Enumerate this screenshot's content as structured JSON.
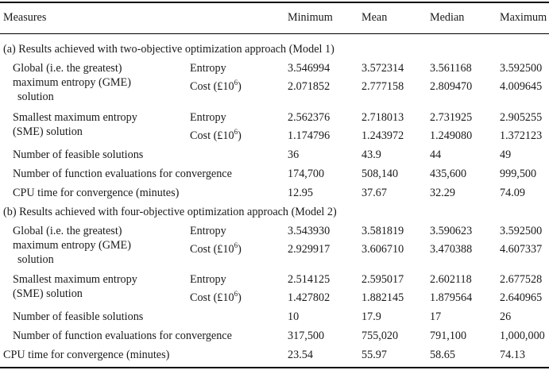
{
  "header": {
    "measures": "Measures",
    "minimum": "Minimum",
    "mean": "Mean",
    "median": "Median",
    "maximum": "Maximum"
  },
  "section_a": {
    "title": "(a) Results achieved with two-objective optimization approach (Model 1)",
    "gme": {
      "label_line1": "Global (i.e. the greatest)",
      "label_line2": "maximum entropy (GME)",
      "label_line3": "solution",
      "entropy": {
        "label": "Entropy",
        "min": "3.546994",
        "mean": "3.572314",
        "median": "3.561168",
        "max": "3.592500"
      },
      "cost": {
        "label_prefix": "Cost (£10",
        "label_sup": "6",
        "label_suffix": ")",
        "min": "2.071852",
        "mean": "2.777158",
        "median": "2.809470",
        "max": "4.009645"
      }
    },
    "sme": {
      "label_line1": "Smallest maximum entropy",
      "label_line2": "(SME) solution",
      "entropy": {
        "label": "Entropy",
        "min": "2.562376",
        "mean": "2.718013",
        "median": "2.731925",
        "max": "2.905255"
      },
      "cost": {
        "label_prefix": "Cost (£10",
        "label_sup": "6",
        "label_suffix": ")",
        "min": "1.174796",
        "mean": "1.243972",
        "median": "1.249080",
        "max": "1.372123"
      }
    },
    "feasible": {
      "label": "Number of feasible solutions",
      "min": "36",
      "mean": "43.9",
      "median": "44",
      "max": "49"
    },
    "evaluations": {
      "label": "Number of function evaluations for convergence",
      "min": "174,700",
      "mean": "508,140",
      "median": "435,600",
      "max": "999,500"
    },
    "cpu": {
      "label": "CPU time for convergence (minutes)",
      "min": "12.95",
      "mean": "37.67",
      "median": "32.29",
      "max": "74.09"
    }
  },
  "section_b": {
    "title": "(b) Results achieved with four-objective optimization approach (Model 2)",
    "gme": {
      "label_line1": "Global (i.e. the greatest)",
      "label_line2": "maximum entropy (GME)",
      "label_line3": "solution",
      "entropy": {
        "label": "Entropy",
        "min": "3.543930",
        "mean": "3.581819",
        "median": "3.590623",
        "max": "3.592500"
      },
      "cost": {
        "label_prefix": "Cost (£10",
        "label_sup": "6",
        "label_suffix": ")",
        "min": "2.929917",
        "mean": "3.606710",
        "median": "3.470388",
        "max": "4.607337"
      }
    },
    "sme": {
      "label_line1": "Smallest maximum entropy",
      "label_line2": "(SME) solution",
      "entropy": {
        "label": "Entropy",
        "min": "2.514125",
        "mean": "2.595017",
        "median": "2.602118",
        "max": "2.677528"
      },
      "cost": {
        "label_prefix": "Cost (£10",
        "label_sup": "6",
        "label_suffix": ")",
        "min": "1.427802",
        "mean": "1.882145",
        "median": "1.879564",
        "max": "2.640965"
      }
    },
    "feasible": {
      "label": "Number of feasible solutions",
      "min": "10",
      "mean": "17.9",
      "median": "17",
      "max": "26"
    },
    "evaluations": {
      "label": "Number of function evaluations for convergence",
      "min": "317,500",
      "mean": "755,020",
      "median": "791,100",
      "max": "1,000,000"
    },
    "cpu": {
      "label": "CPU time for convergence (minutes)",
      "min": "23.54",
      "mean": "55.97",
      "median": "58.65",
      "max": "74.13"
    }
  }
}
